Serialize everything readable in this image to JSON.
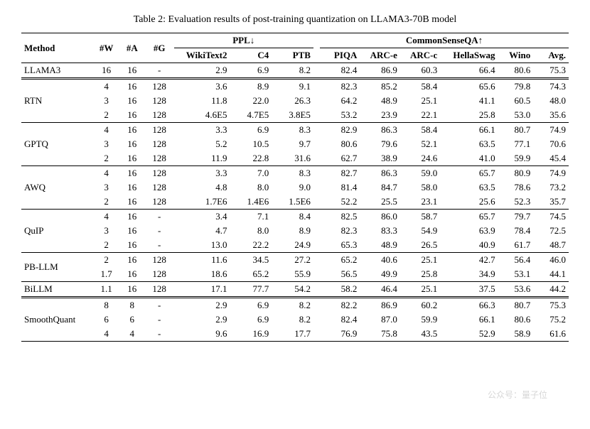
{
  "caption_prefix": "Table 2: Evaluation results of post-training quantization on ",
  "caption_model_a": "LL",
  "caption_model_b": "A",
  "caption_model_c": "MA3-70B model",
  "header": {
    "method": "Method",
    "w": "#W",
    "a": "#A",
    "g": "#G",
    "ppl": "PPL↓",
    "csqa": "CommonSenseQA↑",
    "wikitext2": "WikiText2",
    "c4": "C4",
    "ptb": "PTB",
    "piqa": "PIQA",
    "arc_e": "ARC-e",
    "arc_c": "ARC-c",
    "hellaswag": "HellaSwag",
    "wino": "Wino",
    "avg": "Avg."
  },
  "llama_label_a": "LL",
  "llama_label_b": "A",
  "llama_label_c": "MA3",
  "groups": [
    {
      "method": "LLaMA3",
      "rows": [
        {
          "w": "16",
          "a": "16",
          "g": "-",
          "wt": "2.9",
          "c4": "6.9",
          "ptb": "8.2",
          "piqa": "82.4",
          "arce": "86.9",
          "arcc": "60.3",
          "hs": "66.4",
          "wino": "80.6",
          "avg": "75.3"
        }
      ],
      "special_label": true
    },
    {
      "method": "RTN",
      "dbl": true,
      "rows": [
        {
          "w": "4",
          "a": "16",
          "g": "128",
          "wt": "3.6",
          "c4": "8.9",
          "ptb": "9.1",
          "piqa": "82.3",
          "arce": "85.2",
          "arcc": "58.4",
          "hs": "65.6",
          "wino": "79.8",
          "avg": "74.3"
        },
        {
          "w": "3",
          "a": "16",
          "g": "128",
          "wt": "11.8",
          "c4": "22.0",
          "ptb": "26.3",
          "piqa": "64.2",
          "arce": "48.9",
          "arcc": "25.1",
          "hs": "41.1",
          "wino": "60.5",
          "avg": "48.0"
        },
        {
          "w": "2",
          "a": "16",
          "g": "128",
          "wt": "4.6E5",
          "c4": "4.7E5",
          "ptb": "3.8E5",
          "piqa": "53.2",
          "arce": "23.9",
          "arcc": "22.1",
          "hs": "25.8",
          "wino": "53.0",
          "avg": "35.6"
        }
      ]
    },
    {
      "method": "GPTQ",
      "rows": [
        {
          "w": "4",
          "a": "16",
          "g": "128",
          "wt": "3.3",
          "c4": "6.9",
          "ptb": "8.3",
          "piqa": "82.9",
          "arce": "86.3",
          "arcc": "58.4",
          "hs": "66.1",
          "wino": "80.7",
          "avg": "74.9"
        },
        {
          "w": "3",
          "a": "16",
          "g": "128",
          "wt": "5.2",
          "c4": "10.5",
          "ptb": "9.7",
          "piqa": "80.6",
          "arce": "79.6",
          "arcc": "52.1",
          "hs": "63.5",
          "wino": "77.1",
          "avg": "70.6"
        },
        {
          "w": "2",
          "a": "16",
          "g": "128",
          "wt": "11.9",
          "c4": "22.8",
          "ptb": "31.6",
          "piqa": "62.7",
          "arce": "38.9",
          "arcc": "24.6",
          "hs": "41.0",
          "wino": "59.9",
          "avg": "45.4"
        }
      ]
    },
    {
      "method": "AWQ",
      "rows": [
        {
          "w": "4",
          "a": "16",
          "g": "128",
          "wt": "3.3",
          "c4": "7.0",
          "ptb": "8.3",
          "piqa": "82.7",
          "arce": "86.3",
          "arcc": "59.0",
          "hs": "65.7",
          "wino": "80.9",
          "avg": "74.9"
        },
        {
          "w": "3",
          "a": "16",
          "g": "128",
          "wt": "4.8",
          "c4": "8.0",
          "ptb": "9.0",
          "piqa": "81.4",
          "arce": "84.7",
          "arcc": "58.0",
          "hs": "63.5",
          "wino": "78.6",
          "avg": "73.2"
        },
        {
          "w": "2",
          "a": "16",
          "g": "128",
          "wt": "1.7E6",
          "c4": "1.4E6",
          "ptb": "1.5E6",
          "piqa": "52.2",
          "arce": "25.5",
          "arcc": "23.1",
          "hs": "25.6",
          "wino": "52.3",
          "avg": "35.7"
        }
      ]
    },
    {
      "method": "QuIP",
      "rows": [
        {
          "w": "4",
          "a": "16",
          "g": "-",
          "wt": "3.4",
          "c4": "7.1",
          "ptb": "8.4",
          "piqa": "82.5",
          "arce": "86.0",
          "arcc": "58.7",
          "hs": "65.7",
          "wino": "79.7",
          "avg": "74.5"
        },
        {
          "w": "3",
          "a": "16",
          "g": "-",
          "wt": "4.7",
          "c4": "8.0",
          "ptb": "8.9",
          "piqa": "82.3",
          "arce": "83.3",
          "arcc": "54.9",
          "hs": "63.9",
          "wino": "78.4",
          "avg": "72.5"
        },
        {
          "w": "2",
          "a": "16",
          "g": "-",
          "wt": "13.0",
          "c4": "22.2",
          "ptb": "24.9",
          "piqa": "65.3",
          "arce": "48.9",
          "arcc": "26.5",
          "hs": "40.9",
          "wino": "61.7",
          "avg": "48.7"
        }
      ]
    },
    {
      "method": "PB-LLM",
      "rows": [
        {
          "w": "2",
          "a": "16",
          "g": "128",
          "wt": "11.6",
          "c4": "34.5",
          "ptb": "27.2",
          "piqa": "65.2",
          "arce": "40.6",
          "arcc": "25.1",
          "hs": "42.7",
          "wino": "56.4",
          "avg": "46.0"
        },
        {
          "w": "1.7",
          "a": "16",
          "g": "128",
          "wt": "18.6",
          "c4": "65.2",
          "ptb": "55.9",
          "piqa": "56.5",
          "arce": "49.9",
          "arcc": "25.8",
          "hs": "34.9",
          "wino": "53.1",
          "avg": "44.1"
        }
      ]
    },
    {
      "method": "BiLLM",
      "rows": [
        {
          "w": "1.1",
          "a": "16",
          "g": "128",
          "wt": "17.1",
          "c4": "77.7",
          "ptb": "54.2",
          "piqa": "58.2",
          "arce": "46.4",
          "arcc": "25.1",
          "hs": "37.5",
          "wino": "53.6",
          "avg": "44.2"
        }
      ]
    },
    {
      "method": "SmoothQuant",
      "dbl": true,
      "rows": [
        {
          "w": "8",
          "a": "8",
          "g": "-",
          "wt": "2.9",
          "c4": "6.9",
          "ptb": "8.2",
          "piqa": "82.2",
          "arce": "86.9",
          "arcc": "60.2",
          "hs": "66.3",
          "wino": "80.7",
          "avg": "75.3"
        },
        {
          "w": "6",
          "a": "6",
          "g": "-",
          "wt": "2.9",
          "c4": "6.9",
          "ptb": "8.2",
          "piqa": "82.4",
          "arce": "87.0",
          "arcc": "59.9",
          "hs": "66.1",
          "wino": "80.6",
          "avg": "75.2"
        },
        {
          "w": "4",
          "a": "4",
          "g": "-",
          "wt": "9.6",
          "c4": "16.9",
          "ptb": "17.7",
          "piqa": "76.9",
          "arce": "75.8",
          "arcc": "43.5",
          "hs": "52.9",
          "wino": "58.9",
          "avg": "61.6"
        }
      ]
    }
  ],
  "watermark": "公众号：量子位",
  "colwidths": {
    "method": "90",
    "w": "32",
    "a": "32",
    "g": "36",
    "wt": "70",
    "c4": "52",
    "ptb": "52",
    "piqa": "50",
    "arce": "50",
    "arcc": "50",
    "hs": "72",
    "wino": "44",
    "avg": "44"
  }
}
